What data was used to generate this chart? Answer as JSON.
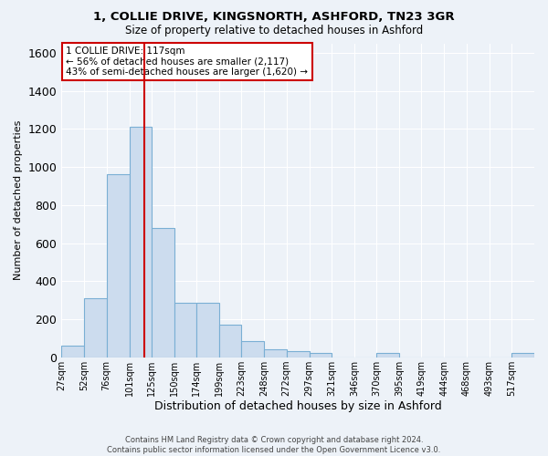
{
  "title1": "1, COLLIE DRIVE, KINGSNORTH, ASHFORD, TN23 3GR",
  "title2": "Size of property relative to detached houses in Ashford",
  "xlabel": "Distribution of detached houses by size in Ashford",
  "ylabel": "Number of detached properties",
  "footer1": "Contains HM Land Registry data © Crown copyright and database right 2024.",
  "footer2": "Contains public sector information licensed under the Open Government Licence v3.0.",
  "annotation_line1": "1 COLLIE DRIVE: 117sqm",
  "annotation_line2": "← 56% of detached houses are smaller (2,117)",
  "annotation_line3": "43% of semi-detached houses are larger (1,620) →",
  "bar_color": "#ccdcee",
  "bar_edge_color": "#7aafd4",
  "vline_color": "#cc0000",
  "vline_x": 117,
  "bin_edges": [
    27,
    52,
    76,
    101,
    125,
    150,
    174,
    199,
    223,
    248,
    272,
    297,
    321,
    346,
    370,
    395,
    419,
    444,
    468,
    493,
    517,
    542
  ],
  "cat_labels": [
    "27sqm",
    "52sqm",
    "76sqm",
    "101sqm",
    "125sqm",
    "150sqm",
    "174sqm",
    "199sqm",
    "223sqm",
    "248sqm",
    "272sqm",
    "297sqm",
    "321sqm",
    "346sqm",
    "370sqm",
    "395sqm",
    "419sqm",
    "444sqm",
    "468sqm",
    "493sqm",
    "517sqm"
  ],
  "values": [
    60,
    310,
    960,
    1210,
    680,
    285,
    285,
    170,
    85,
    40,
    30,
    20,
    0,
    0,
    20,
    0,
    0,
    0,
    0,
    0,
    20
  ],
  "ylim": [
    0,
    1650
  ],
  "yticks": [
    0,
    200,
    400,
    600,
    800,
    1000,
    1200,
    1400,
    1600
  ],
  "background_color": "#edf2f8",
  "grid_color": "#ffffff",
  "annotation_box_color": "#ffffff",
  "annotation_box_edge": "#cc0000"
}
